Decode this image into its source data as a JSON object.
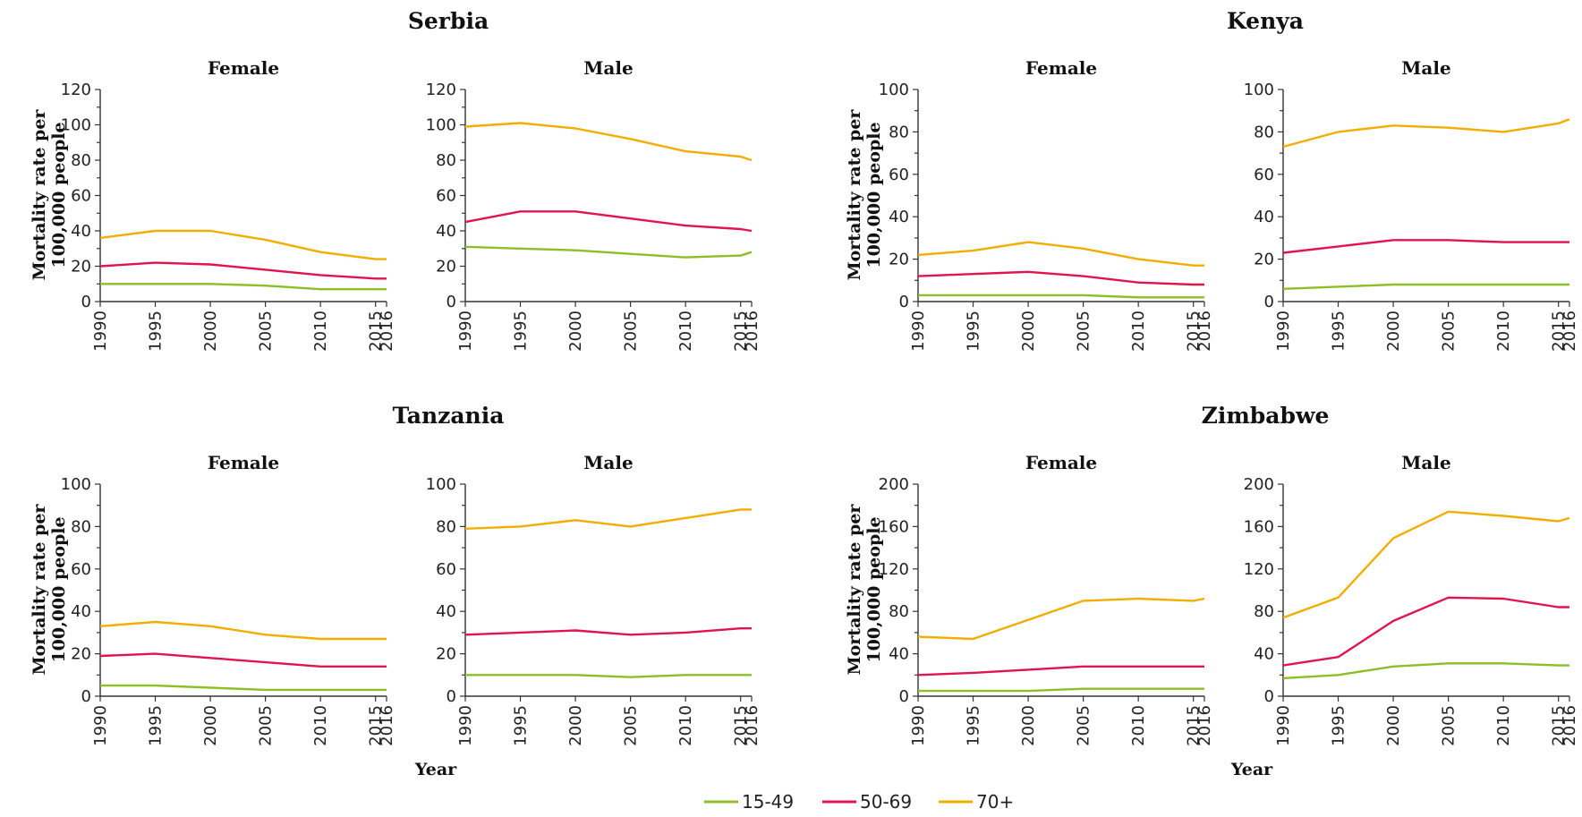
{
  "colors": {
    "15-49": "#8cbf26",
    "50-69": "#e0154e",
    "70+": "#f2ad00"
  },
  "legend": [
    "15-49",
    "50-69",
    "70+"
  ],
  "x_axis_title": "Year",
  "y_axis_title_line1": "Mortality rate per",
  "y_axis_title_line2": "100,000 people",
  "chart_data": [
    {
      "type": "line",
      "country": "Serbia",
      "title": "Female",
      "x": [
        1990,
        1995,
        2000,
        2005,
        2010,
        2015,
        2016
      ],
      "ylim": [
        0,
        120
      ],
      "yticks": [
        0,
        20,
        40,
        60,
        80,
        100,
        120
      ],
      "series": [
        {
          "name": "15-49",
          "values": [
            10,
            10,
            10,
            9,
            7,
            7,
            7
          ]
        },
        {
          "name": "50-69",
          "values": [
            20,
            22,
            21,
            18,
            15,
            13,
            13
          ]
        },
        {
          "name": "70+",
          "values": [
            36,
            40,
            40,
            35,
            28,
            24,
            24
          ]
        }
      ]
    },
    {
      "type": "line",
      "country": "Serbia",
      "title": "Male",
      "x": [
        1990,
        1995,
        2000,
        2005,
        2010,
        2015,
        2016
      ],
      "ylim": [
        0,
        120
      ],
      "yticks": [
        0,
        20,
        40,
        60,
        80,
        100,
        120
      ],
      "series": [
        {
          "name": "15-49",
          "values": [
            31,
            30,
            29,
            27,
            25,
            26,
            28
          ]
        },
        {
          "name": "50-69",
          "values": [
            45,
            51,
            51,
            47,
            43,
            41,
            40
          ]
        },
        {
          "name": "70+",
          "values": [
            99,
            101,
            98,
            92,
            85,
            82,
            80
          ]
        }
      ]
    },
    {
      "type": "line",
      "country": "Kenya",
      "title": "Female",
      "x": [
        1990,
        1995,
        2000,
        2005,
        2010,
        2015,
        2016
      ],
      "ylim": [
        0,
        100
      ],
      "yticks": [
        0,
        20,
        40,
        60,
        80,
        100
      ],
      "series": [
        {
          "name": "15-49",
          "values": [
            3,
            3,
            3,
            3,
            2,
            2,
            2
          ]
        },
        {
          "name": "50-69",
          "values": [
            12,
            13,
            14,
            12,
            9,
            8,
            8
          ]
        },
        {
          "name": "70+",
          "values": [
            22,
            24,
            28,
            25,
            20,
            17,
            17
          ]
        }
      ]
    },
    {
      "type": "line",
      "country": "Kenya",
      "title": "Male",
      "x": [
        1990,
        1995,
        2000,
        2005,
        2010,
        2015,
        2016
      ],
      "ylim": [
        0,
        100
      ],
      "yticks": [
        0,
        20,
        40,
        60,
        80,
        100
      ],
      "series": [
        {
          "name": "15-49",
          "values": [
            6,
            7,
            8,
            8,
            8,
            8,
            8
          ]
        },
        {
          "name": "50-69",
          "values": [
            23,
            26,
            29,
            29,
            28,
            28,
            28
          ]
        },
        {
          "name": "70+",
          "values": [
            73,
            80,
            83,
            82,
            80,
            84,
            86
          ]
        }
      ]
    },
    {
      "type": "line",
      "country": "Tanzania",
      "title": "Female",
      "x": [
        1990,
        1995,
        2000,
        2005,
        2010,
        2015,
        2016
      ],
      "ylim": [
        0,
        100
      ],
      "yticks": [
        0,
        20,
        40,
        60,
        80,
        100
      ],
      "series": [
        {
          "name": "15-49",
          "values": [
            5,
            5,
            4,
            3,
            3,
            3,
            3
          ]
        },
        {
          "name": "50-69",
          "values": [
            19,
            20,
            18,
            16,
            14,
            14,
            14
          ]
        },
        {
          "name": "70+",
          "values": [
            33,
            35,
            33,
            29,
            27,
            27,
            27
          ]
        }
      ]
    },
    {
      "type": "line",
      "country": "Tanzania",
      "title": "Male",
      "x": [
        1990,
        1995,
        2000,
        2005,
        2010,
        2015,
        2016
      ],
      "ylim": [
        0,
        100
      ],
      "yticks": [
        0,
        20,
        40,
        60,
        80,
        100
      ],
      "series": [
        {
          "name": "15-49",
          "values": [
            10,
            10,
            10,
            9,
            10,
            10,
            10
          ]
        },
        {
          "name": "50-69",
          "values": [
            29,
            30,
            31,
            29,
            30,
            32,
            32
          ]
        },
        {
          "name": "70+",
          "values": [
            79,
            80,
            83,
            80,
            84,
            88,
            88
          ]
        }
      ]
    },
    {
      "type": "line",
      "country": "Zimbabwe",
      "title": "Female",
      "x": [
        1990,
        1995,
        2000,
        2005,
        2010,
        2015,
        2016
      ],
      "ylim": [
        0,
        200
      ],
      "yticks": [
        0,
        40,
        80,
        120,
        160,
        200
      ],
      "series": [
        {
          "name": "15-49",
          "values": [
            5,
            5,
            5,
            7,
            7,
            7,
            7
          ]
        },
        {
          "name": "50-69",
          "values": [
            20,
            22,
            25,
            28,
            28,
            28,
            28
          ]
        },
        {
          "name": "70+",
          "values": [
            56,
            54,
            72,
            90,
            92,
            90,
            92
          ]
        }
      ]
    },
    {
      "type": "line",
      "country": "Zimbabwe",
      "title": "Male",
      "x": [
        1990,
        1995,
        2000,
        2005,
        2010,
        2015,
        2016
      ],
      "ylim": [
        0,
        200
      ],
      "yticks": [
        0,
        40,
        80,
        120,
        160,
        200
      ],
      "series": [
        {
          "name": "15-49",
          "values": [
            17,
            20,
            28,
            31,
            31,
            29,
            29
          ]
        },
        {
          "name": "50-69",
          "values": [
            29,
            37,
            71,
            93,
            92,
            84,
            84
          ]
        },
        {
          "name": "70+",
          "values": [
            74,
            93,
            149,
            174,
            170,
            165,
            168
          ]
        }
      ]
    }
  ]
}
